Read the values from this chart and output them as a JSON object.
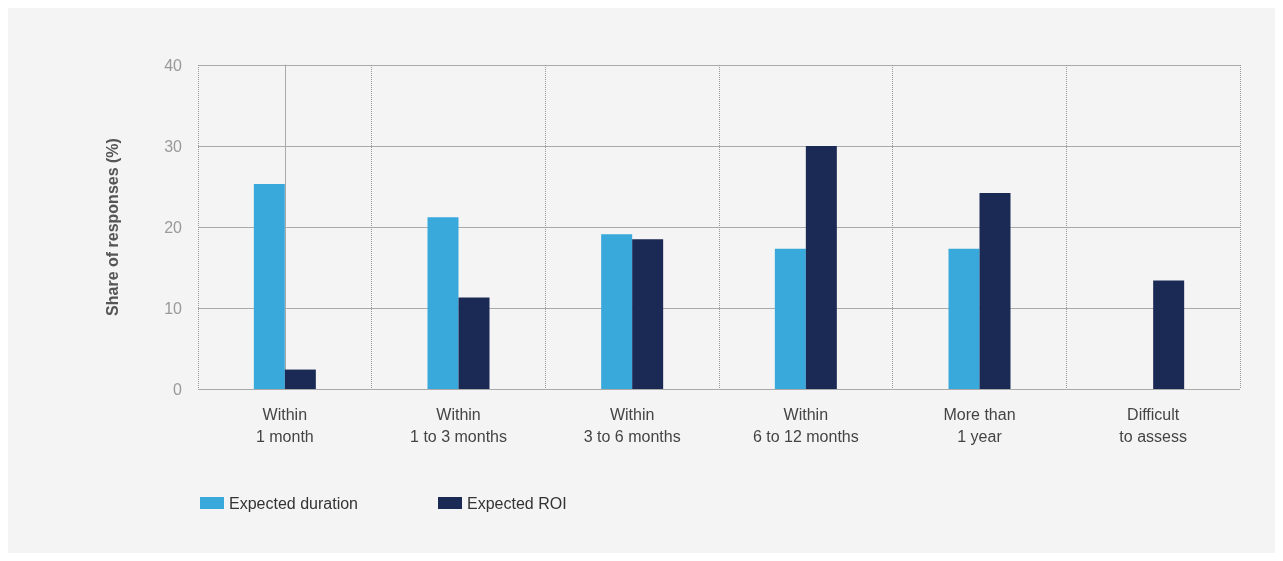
{
  "chart_data": {
    "type": "bar",
    "ylabel": "Share of responses (%)",
    "categories": [
      "Within\n1 month",
      "Within\n1 to 3 months",
      "Within\n3 to 6 months",
      "Within\n6 to 12 months",
      "More than\n1 year",
      "Difficult\nto assess"
    ],
    "series": [
      {
        "name": "Expected duration",
        "color": "#39a9dc",
        "values": [
          25.3,
          21.2,
          19.1,
          17.3,
          17.3,
          null
        ]
      },
      {
        "name": "Expected ROI",
        "color": "#1b2a55",
        "values": [
          2.4,
          11.3,
          18.5,
          30,
          24.2,
          13.4
        ]
      }
    ],
    "ylim": [
      0,
      40
    ],
    "yticks": [
      0,
      10,
      20,
      30,
      40
    ],
    "grid": true,
    "legend": "bottom left"
  }
}
